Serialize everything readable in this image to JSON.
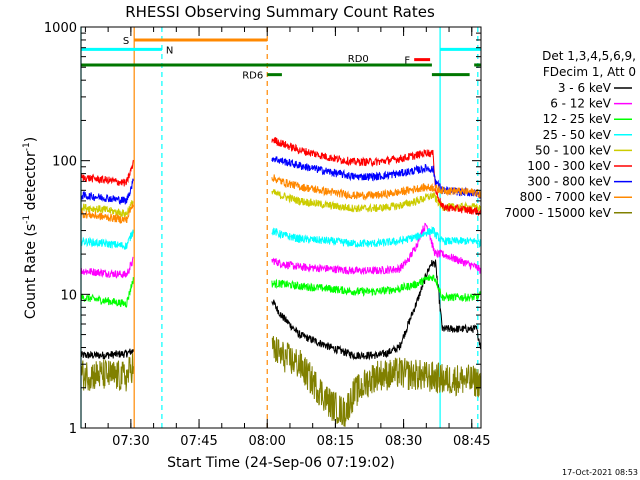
{
  "chart_data": {
    "type": "line",
    "title": "RHESSI Observing Summary Count Rates",
    "xlabel": "Start Time (24-Sep-06 07:19:02)",
    "ylabel": "Count Rate (s",
    "ylabel_sup1": "-1",
    "ylabel_mid": " detector",
    "ylabel_sup2": "-1",
    "ylabel_end": ")",
    "y_scale": "log",
    "ylim": [
      1,
      1000
    ],
    "xlim_minutes": [
      0,
      88
    ],
    "x_ticks": [
      {
        "m": 10.97,
        "label": "07:30"
      },
      {
        "m": 25.97,
        "label": "07:45"
      },
      {
        "m": 40.97,
        "label": "08:00"
      },
      {
        "m": 55.97,
        "label": "08:15"
      },
      {
        "m": 70.97,
        "label": "08:30"
      },
      {
        "m": 85.97,
        "label": "08:45"
      }
    ],
    "y_ticks": [
      {
        "v": 1,
        "label": "1"
      },
      {
        "v": 10,
        "label": "10"
      },
      {
        "v": 100,
        "label": "100"
      },
      {
        "v": 1000,
        "label": "1000"
      }
    ],
    "legend_header": [
      "Det 1,3,4,5,6,9,",
      "FDecim 1, Att 0"
    ],
    "legend_position": "right",
    "grid": false,
    "series": [
      {
        "name": "3 - 6 keV",
        "color": "#000000",
        "x": [
          0,
          5,
          10,
          11.5,
          12,
          40.97,
          42,
          44,
          48,
          55,
          60,
          65,
          67,
          70,
          72,
          74,
          76,
          77,
          78,
          79.5,
          87,
          88
        ],
        "values": [
          3.5,
          3.5,
          3.6,
          3.8,
          null,
          null,
          9,
          7,
          5,
          4,
          3.5,
          3.5,
          3.6,
          4,
          6,
          9,
          14,
          17,
          17,
          5.5,
          5.5,
          4
        ]
      },
      {
        "name": "6 - 12 keV",
        "color": "#ff00ff",
        "x": [
          0,
          5,
          10,
          11.5,
          12,
          40.97,
          42,
          44,
          48,
          55,
          60,
          65,
          70,
          72,
          74,
          75,
          76,
          76.5,
          77.5,
          78,
          79.5,
          87,
          88
        ],
        "values": [
          15,
          14.5,
          14,
          18,
          null,
          null,
          18,
          17,
          16,
          15.5,
          15,
          15,
          15.5,
          18,
          24,
          30,
          33,
          30,
          22,
          20,
          20,
          16,
          15
        ]
      },
      {
        "name": "12 - 25 keV",
        "color": "#00ff00",
        "x": [
          0,
          5,
          10,
          11.5,
          12,
          40.97,
          42,
          44,
          48,
          55,
          60,
          65,
          70,
          74,
          76,
          77.5,
          78,
          79.5,
          87,
          88
        ],
        "values": [
          9.5,
          9,
          8.5,
          13,
          null,
          null,
          12,
          12,
          11.5,
          11,
          10.5,
          10.5,
          11,
          12,
          13,
          13.5,
          13,
          9.5,
          9.5,
          10
        ]
      },
      {
        "name": "25 - 50 keV",
        "color": "#00ffff",
        "x": [
          0,
          5,
          10,
          11.5,
          12,
          40.97,
          42,
          44,
          48,
          55,
          60,
          65,
          70,
          74,
          76,
          77.5,
          78,
          79.5,
          87,
          88
        ],
        "values": [
          25,
          24,
          23,
          30,
          null,
          null,
          30,
          28,
          26,
          25,
          24,
          24,
          25,
          27,
          29,
          30,
          28,
          25,
          25,
          24
        ]
      },
      {
        "name": "50 - 100 keV",
        "color": "#cccc00",
        "x": [
          0,
          5,
          10,
          11.5,
          12,
          40.97,
          42,
          44,
          48,
          55,
          60,
          65,
          70,
          74,
          76,
          77.5,
          78,
          79.5,
          87,
          88
        ],
        "values": [
          45,
          43,
          40,
          50,
          null,
          null,
          58,
          55,
          50,
          46,
          44,
          44,
          46,
          50,
          53,
          55,
          52,
          45,
          45,
          43
        ]
      },
      {
        "name": "100 - 300 keV",
        "color": "#ff0000",
        "x": [
          0,
          5,
          10,
          11.5,
          12,
          40.97,
          42,
          44,
          48,
          55,
          60,
          65,
          70,
          74,
          76,
          77.5,
          78,
          79.5,
          87,
          88
        ],
        "values": [
          75,
          72,
          68,
          95,
          null,
          null,
          145,
          135,
          120,
          105,
          98,
          98,
          103,
          110,
          115,
          112,
          60,
          45,
          42,
          40
        ]
      },
      {
        "name": "300 - 800 keV",
        "color": "#0000ff",
        "x": [
          0,
          5,
          10,
          11.5,
          12,
          40.97,
          42,
          44,
          48,
          55,
          60,
          65,
          70,
          74,
          76,
          77.5,
          78,
          79.5,
          87,
          88
        ],
        "values": [
          55,
          53,
          50,
          70,
          null,
          null,
          105,
          100,
          92,
          82,
          76,
          76,
          80,
          85,
          88,
          86,
          70,
          60,
          57,
          55
        ]
      },
      {
        "name": "800 - 7000 keV",
        "color": "#ff8800",
        "x": [
          0,
          5,
          10,
          11.5,
          12,
          40.97,
          42,
          44,
          48,
          55,
          60,
          65,
          70,
          74,
          76,
          77.5,
          78,
          79.5,
          87,
          88
        ],
        "values": [
          40,
          38,
          36,
          48,
          null,
          null,
          75,
          70,
          64,
          58,
          55,
          55,
          58,
          62,
          63,
          63,
          62,
          60,
          58,
          55
        ]
      },
      {
        "name": "7000 - 15000 keV",
        "color": "#808000",
        "x": [
          0,
          5,
          10,
          11.5,
          12,
          40.97,
          42,
          44,
          48,
          52,
          55,
          58,
          60,
          63,
          65,
          68,
          70,
          72,
          74,
          76,
          78,
          79.5,
          84,
          88
        ],
        "values": [
          2.5,
          2.5,
          2.4,
          3,
          null,
          null,
          4,
          3.5,
          3,
          2,
          1.5,
          1.3,
          1.8,
          2.2,
          2.5,
          2.5,
          2.6,
          2.5,
          2.5,
          2.4,
          2.4,
          2.3,
          2.3,
          2.2
        ]
      }
    ],
    "vertical_markers": [
      {
        "m": 0,
        "color": "#00ffff",
        "style": "solid"
      },
      {
        "m": 11.7,
        "color": "#ff8800",
        "style": "solid"
      },
      {
        "m": 17.8,
        "color": "#00ffff",
        "style": "dashed"
      },
      {
        "m": 40.97,
        "color": "#ff8800",
        "style": "dashed"
      },
      {
        "m": 79.0,
        "color": "#00ffff",
        "style": "solid"
      },
      {
        "m": 87.3,
        "color": "#00ffff",
        "style": "dashed"
      }
    ],
    "flag_bars": [
      {
        "label": "S",
        "color": "#ff8800",
        "m0": 11.7,
        "m1": 40.97,
        "v": 800
      },
      {
        "label": "N",
        "color": "#00ffff",
        "m0": 0,
        "m1": 17.8,
        "v": 680
      },
      {
        "label": "",
        "color": "#00ffff",
        "m0": 79.0,
        "m1": 88,
        "v": 680
      },
      {
        "label": "F",
        "color": "#ff0000",
        "m0": 73.3,
        "m1": 76.8,
        "v": 570
      },
      {
        "label": "RD0",
        "color": "#007700",
        "m0": 0,
        "m1": 77.2,
        "v": 520
      },
      {
        "label": "",
        "color": "#007700",
        "m0": 86.5,
        "m1": 88,
        "v": 520
      },
      {
        "label": "RD6",
        "color": "#007700",
        "m0": 40.97,
        "m1": 44.2,
        "v": 440
      },
      {
        "label": "",
        "color": "#007700",
        "m0": 77.2,
        "m1": 85.5,
        "v": 440
      }
    ],
    "timestamp": "17-Oct-2021 08:53"
  }
}
